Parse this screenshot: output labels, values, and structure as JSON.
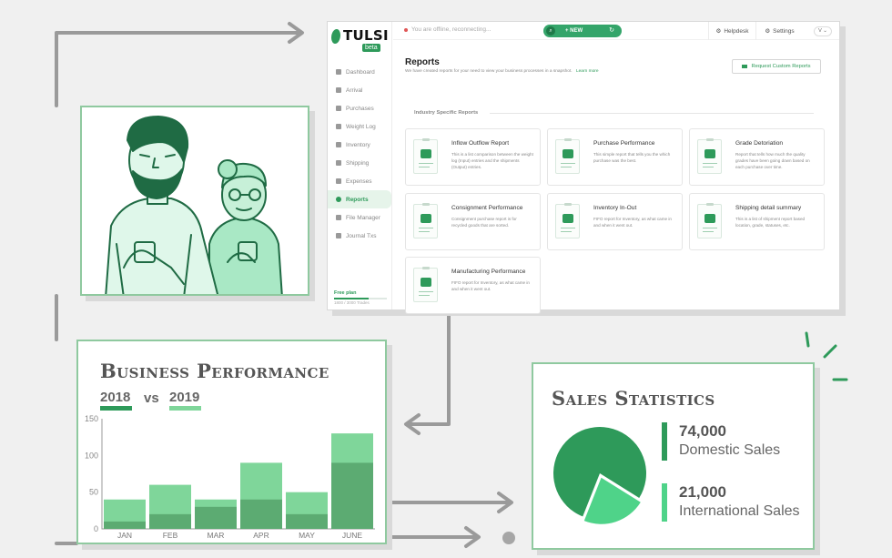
{
  "app": {
    "logo_text": "TULSI",
    "logo_badge": "beta",
    "status": "You are offline, reconnecting...",
    "new_label": "+ NEW",
    "helpdesk_label": "Helpdesk",
    "settings_label": "Settings",
    "user_initial": "V",
    "sidebar": {
      "items": [
        {
          "label": "Dashboard",
          "active": false
        },
        {
          "label": "Arrival",
          "active": false
        },
        {
          "label": "Purchases",
          "active": false
        },
        {
          "label": "Weight Log",
          "active": false
        },
        {
          "label": "Inventory",
          "active": false
        },
        {
          "label": "Shipping",
          "active": false
        },
        {
          "label": "Expenses",
          "active": false
        },
        {
          "label": "Reports",
          "active": true
        },
        {
          "label": "File Manager",
          "active": false
        },
        {
          "label": "Journal Txs",
          "active": false
        }
      ],
      "plan_label": "Free plan",
      "plan_quota": "1800 / 3000 Trades"
    },
    "page": {
      "title": "Reports",
      "description": "We have created reports for your need to view your business processes in a snapshot.",
      "learn_more": "Learn more",
      "request_button": "Request Custom Reports",
      "section_title": "Industry Specific Reports"
    },
    "reports": [
      {
        "title": "Inflow Outflow Report",
        "description": "This is a list comparison between the weight log (Input) entries and the shipments (Output) entries."
      },
      {
        "title": "Purchase Performance",
        "description": "This simple report that tells you the which purchase was the best."
      },
      {
        "title": "Grade Detoriation",
        "description": "Report that tells how much the quality grades have been going down based on each purchase over time."
      },
      {
        "title": "Consignment Performance",
        "description": "Consignment purchase report is for recycled goods that are sorted."
      },
      {
        "title": "Inventory In-Out",
        "description": "FIFO report for Inventory, as what came in and when it went out."
      },
      {
        "title": "Shipping detail summary",
        "description": "This is a list of shipment report based location, grade, statuses, etc."
      },
      {
        "title": "Manufacturing Performance",
        "description": "FIFO report for Inventory, as what came in and when it went out."
      }
    ]
  },
  "business_performance": {
    "title": "Business Performance",
    "legend": [
      {
        "label": "2018",
        "color": "#2e9a5a"
      },
      {
        "label": "2019",
        "color": "#7fd69a"
      }
    ],
    "vs_label": "vs"
  },
  "sales_statistics": {
    "title": "Sales Statistics",
    "stats": [
      {
        "value": "74,000",
        "label": "Domestic Sales",
        "color": "#2e9a5a"
      },
      {
        "value": "21,000",
        "label": "International Sales",
        "color": "#4fd389"
      }
    ]
  },
  "colors": {
    "accent": "#2e9a5a",
    "light_accent": "#7fd69a",
    "frame": "#8fc99f",
    "background": "#f0f0f0"
  },
  "chart_data": [
    {
      "type": "bar",
      "title": "Business Performance",
      "categories": [
        "JAN",
        "FEB",
        "MAR",
        "APR",
        "MAY",
        "JUNE"
      ],
      "series": [
        {
          "name": "2018",
          "values": [
            10,
            20,
            30,
            40,
            20,
            90
          ]
        },
        {
          "name": "2019",
          "values": [
            40,
            60,
            40,
            90,
            50,
            130
          ]
        }
      ],
      "ylim": [
        0,
        150
      ],
      "yticks": [
        0,
        50,
        100,
        150
      ],
      "grid": false
    },
    {
      "type": "pie",
      "title": "Sales Statistics",
      "labels": [
        "Domestic Sales",
        "International Sales"
      ],
      "values": [
        74000,
        21000
      ]
    }
  ]
}
